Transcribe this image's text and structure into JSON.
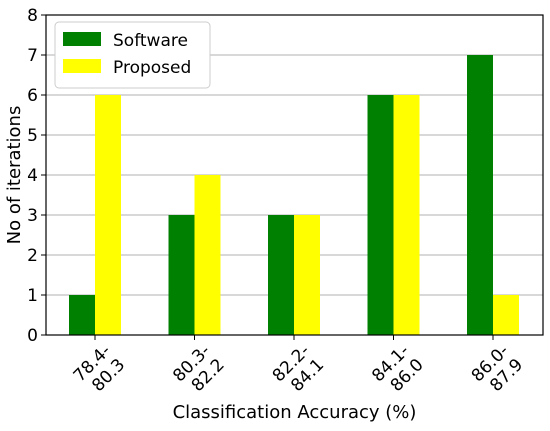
{
  "chart_data": {
    "type": "bar",
    "xlabel": "Classification Accuracy (%)",
    "ylabel": "No of iterations",
    "ylim": [
      0,
      8
    ],
    "yticks": [
      0,
      1,
      2,
      3,
      4,
      5,
      6,
      7,
      8
    ],
    "grid": "horizontal",
    "legend_position": "top-left",
    "categories": [
      {
        "line1": "78.4-",
        "line2": "80.3"
      },
      {
        "line1": "80.3-",
        "line2": "82.2"
      },
      {
        "line1": "82.2-",
        "line2": "84.1"
      },
      {
        "line1": "84.1-",
        "line2": "86.0"
      },
      {
        "line1": "86.0-",
        "line2": "87.9"
      }
    ],
    "series": [
      {
        "name": "Software",
        "color": "#008000",
        "values": [
          1,
          3,
          3,
          6,
          7
        ]
      },
      {
        "name": "Proposed",
        "color": "#ffff00",
        "values": [
          6,
          4,
          3,
          6,
          1
        ]
      }
    ]
  }
}
